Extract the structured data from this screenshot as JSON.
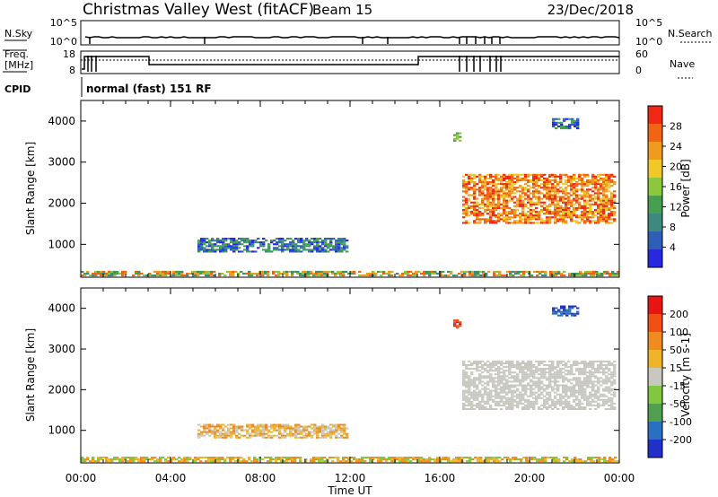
{
  "header": {
    "title": "Christmas Valley West (fitACF)",
    "beam": "Beam 15",
    "date": "23/Dec/2018"
  },
  "noise_panel": {
    "left_label": "N.Sky",
    "right_label": "N.Search",
    "left_ticks": [
      "10^5",
      "10^0"
    ],
    "right_ticks": [
      "10^5",
      "10^0"
    ]
  },
  "freq_panel": {
    "left_label_1": "Freq.",
    "left_label_2": "[MHz]",
    "right_label": "Nave",
    "left_ticks": [
      "18",
      "8"
    ],
    "right_ticks": [
      "60",
      "0"
    ]
  },
  "cpid": {
    "label": "CPID",
    "value": "normal (fast) 151 RF"
  },
  "chart_data": [
    {
      "type": "heatmap",
      "name": "power",
      "ylabel": "Slant Range [km]",
      "xlabel": "Time UT",
      "x_ticks": [
        "00:00",
        "04:00",
        "08:00",
        "12:00",
        "16:00",
        "20:00",
        "00:00"
      ],
      "y_ticks": [
        "1000",
        "2000",
        "3000",
        "4000"
      ],
      "ylim": [
        200,
        4500
      ],
      "xlim_hours": [
        0,
        24
      ],
      "colorbar_label": "Power [dB]",
      "colorbar_ticks": [
        "28",
        "24",
        "20",
        "16",
        "12",
        "8",
        "4"
      ],
      "colors": [
        "#2828e0",
        "#2c5fb5",
        "#3c8a7e",
        "#46a050",
        "#8cc83c",
        "#f0c828",
        "#f09a1e",
        "#f06414",
        "#f02814"
      ],
      "regions": [
        {
          "t0": 0.0,
          "t1": 24.0,
          "r0": 220,
          "r1": 330,
          "levels": [
            2,
            3,
            4,
            6,
            7
          ]
        },
        {
          "t0": 5.2,
          "t1": 11.8,
          "r0": 800,
          "r1": 1150,
          "levels": [
            0,
            1,
            2,
            3
          ]
        },
        {
          "t0": 17.0,
          "t1": 23.8,
          "r0": 1500,
          "r1": 2700,
          "levels": [
            5,
            6,
            7,
            8
          ]
        },
        {
          "t0": 21.0,
          "t1": 22.2,
          "r0": 3800,
          "r1": 4050,
          "levels": [
            0,
            1,
            3
          ]
        },
        {
          "t0": 16.6,
          "t1": 16.9,
          "r0": 3500,
          "r1": 3700,
          "levels": [
            3,
            4
          ]
        }
      ]
    },
    {
      "type": "heatmap",
      "name": "velocity",
      "ylabel": "Slant Range [km]",
      "xlabel": "Time UT",
      "x_ticks": [
        "00:00",
        "04:00",
        "08:00",
        "12:00",
        "16:00",
        "20:00",
        "00:00"
      ],
      "y_ticks": [
        "1000",
        "2000",
        "3000",
        "4000"
      ],
      "ylim": [
        200,
        4500
      ],
      "xlim_hours": [
        0,
        24
      ],
      "colorbar_label": "Velocity [m s-1]",
      "colorbar_ticks": [
        "200",
        "100",
        "50",
        "15",
        "-15",
        "-50",
        "-100",
        "-200"
      ],
      "colors": [
        "#2030c8",
        "#2870c0",
        "#50a050",
        "#80c840",
        "#c8c8c0",
        "#f0b428",
        "#f08c1e",
        "#f05014",
        "#e81414"
      ],
      "regions": [
        {
          "t0": 0.0,
          "t1": 24.0,
          "r0": 220,
          "r1": 330,
          "levels": [
            3,
            5,
            6
          ]
        },
        {
          "t0": 5.2,
          "t1": 11.8,
          "r0": 800,
          "r1": 1150,
          "levels": [
            4,
            5,
            6
          ]
        },
        {
          "t0": 17.0,
          "t1": 23.8,
          "r0": 1500,
          "r1": 2700,
          "levels": [
            4
          ]
        },
        {
          "t0": 21.0,
          "t1": 22.2,
          "r0": 3800,
          "r1": 4050,
          "levels": [
            0,
            1
          ]
        },
        {
          "t0": 16.6,
          "t1": 16.9,
          "r0": 3500,
          "r1": 3700,
          "levels": [
            7,
            8
          ]
        }
      ]
    }
  ]
}
